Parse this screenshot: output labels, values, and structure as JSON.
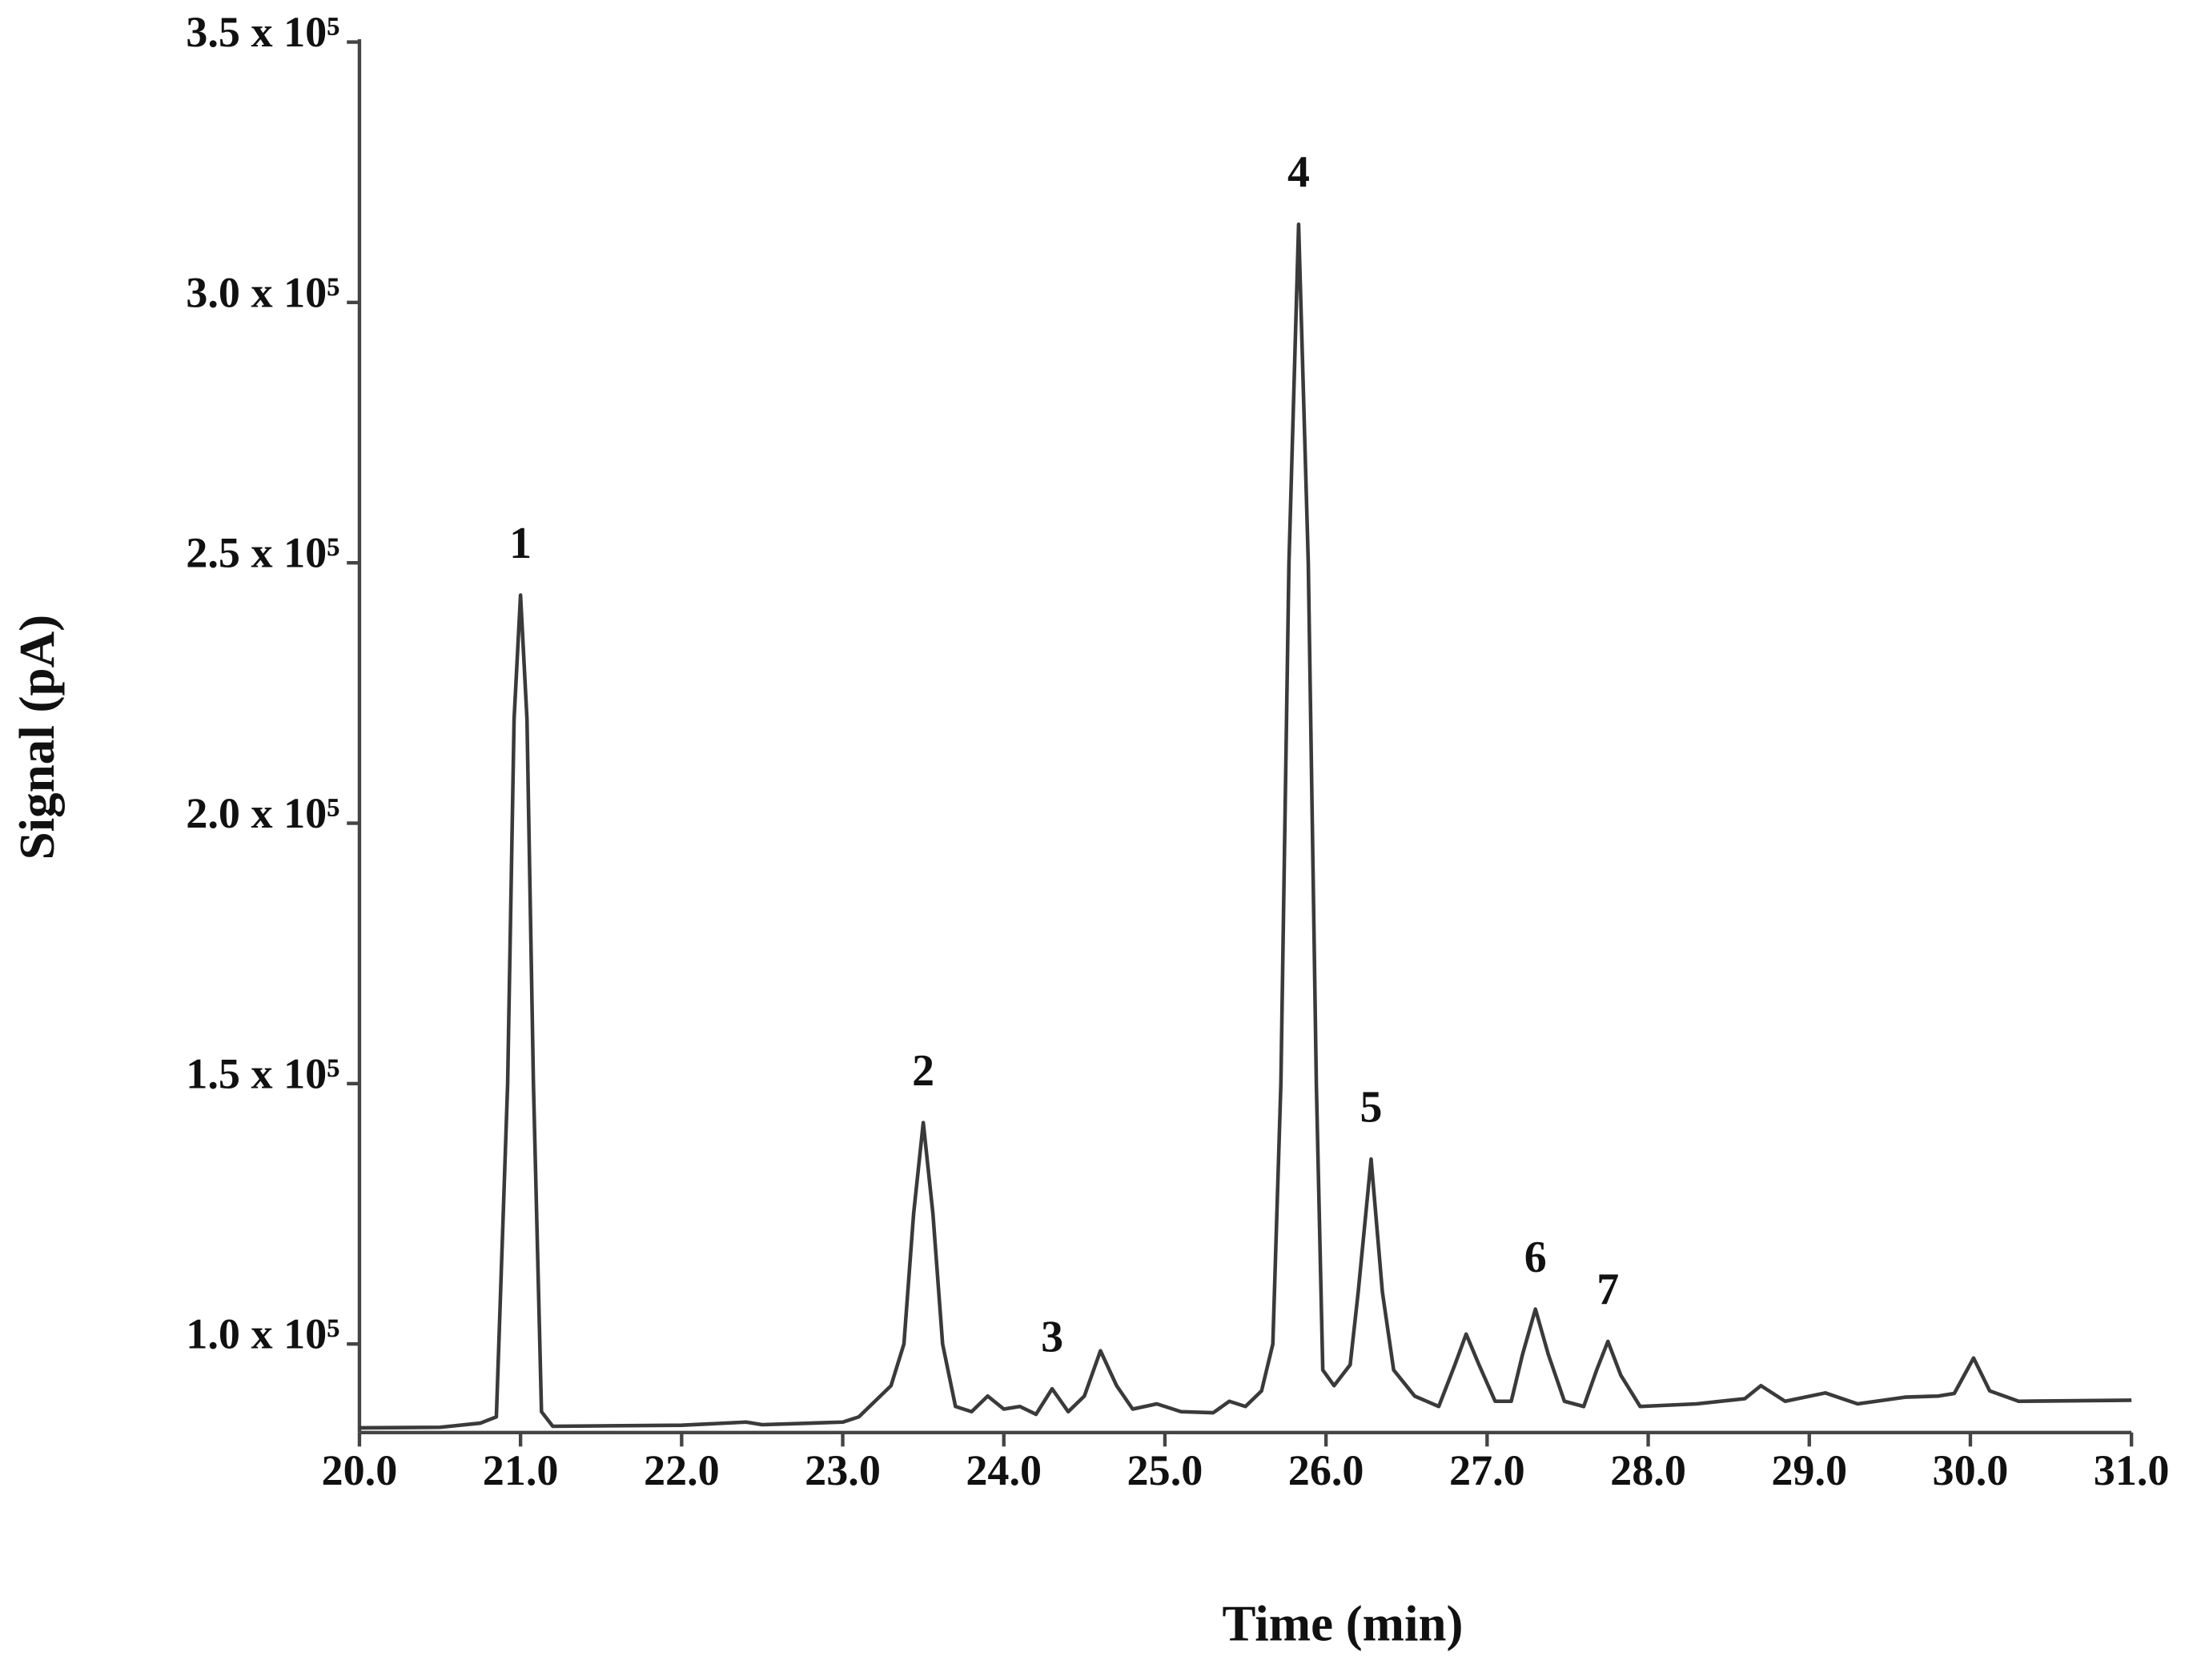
{
  "chart_data": {
    "type": "line",
    "xlabel": "Time (min)",
    "ylabel": "Signal (pA)",
    "xlim": [
      20,
      31
    ],
    "ylim": [
      83000,
      350000
    ],
    "xticks": [
      {
        "value": 20,
        "label": "20.0"
      },
      {
        "value": 21,
        "label": "21.0"
      },
      {
        "value": 22,
        "label": "22.0"
      },
      {
        "value": 23,
        "label": "23.0"
      },
      {
        "value": 24,
        "label": "24.0"
      },
      {
        "value": 25,
        "label": "25.0"
      },
      {
        "value": 26,
        "label": "26.0"
      },
      {
        "value": 27,
        "label": "27.0"
      },
      {
        "value": 28,
        "label": "28.0"
      },
      {
        "value": 29,
        "label": "29.0"
      },
      {
        "value": 30,
        "label": "30.0"
      },
      {
        "value": 31,
        "label": "31.0"
      }
    ],
    "yticks": [
      {
        "value": 100000,
        "label": "1.0 x 10⁵"
      },
      {
        "value": 150000,
        "label": "1.5 x 10⁵"
      },
      {
        "value": 200000,
        "label": "2.0 x 10⁵"
      },
      {
        "value": 250000,
        "label": "2.5 x 10⁵"
      },
      {
        "value": 300000,
        "label": "3.0 x 10⁵"
      },
      {
        "value": 350000,
        "label": "3.5 x 10⁵"
      }
    ],
    "color": "#3a3a3a",
    "x": [
      20.0,
      20.5,
      20.75,
      20.85,
      20.92,
      20.96,
      21.0,
      21.04,
      21.08,
      21.13,
      21.2,
      22.0,
      22.4,
      22.5,
      23.0,
      23.1,
      23.3,
      23.38,
      23.44,
      23.5,
      23.56,
      23.62,
      23.7,
      23.8,
      23.9,
      24.0,
      24.1,
      24.2,
      24.3,
      24.4,
      24.5,
      24.6,
      24.7,
      24.8,
      24.95,
      25.1,
      25.3,
      25.4,
      25.5,
      25.6,
      25.67,
      25.72,
      25.77,
      25.83,
      25.89,
      25.94,
      25.98,
      26.05,
      26.15,
      26.2,
      26.28,
      26.35,
      26.42,
      26.55,
      26.7,
      26.8,
      26.87,
      26.95,
      27.05,
      27.15,
      27.22,
      27.3,
      27.38,
      27.48,
      27.6,
      27.68,
      27.75,
      27.83,
      27.95,
      28.3,
      28.6,
      28.7,
      28.85,
      29.1,
      29.3,
      29.6,
      29.8,
      29.9,
      30.02,
      30.12,
      30.3,
      31.0
    ],
    "values": [
      83900,
      84000,
      84800,
      86000,
      150000,
      220000,
      243800,
      220000,
      150000,
      87000,
      84200,
      84400,
      85000,
      84500,
      85000,
      86000,
      92000,
      100000,
      125000,
      142500,
      125000,
      100000,
      88000,
      87000,
      90000,
      87500,
      88000,
      86500,
      91400,
      87000,
      90000,
      98700,
      92000,
      87500,
      88500,
      87000,
      86800,
      89000,
      88000,
      91000,
      100000,
      150000,
      250000,
      315000,
      250000,
      150000,
      95000,
      92000,
      96000,
      110000,
      135500,
      110000,
      95000,
      90000,
      88000,
      96000,
      101900,
      96000,
      89000,
      89000,
      98000,
      106700,
      98000,
      89000,
      88000,
      95000,
      100500,
      94000,
      88000,
      88500,
      89500,
      92000,
      89000,
      90600,
      88500,
      89800,
      90000,
      90500,
      97300,
      91000,
      89000,
      89200
    ],
    "annotations": [
      {
        "text": "1",
        "x": 21.0
      },
      {
        "text": "2",
        "x": 23.5
      },
      {
        "text": "3",
        "x": 24.3
      },
      {
        "text": "4",
        "x": 25.83
      },
      {
        "text": "5",
        "x": 26.28
      },
      {
        "text": "6",
        "x": 27.3
      },
      {
        "text": "7",
        "x": 27.75
      }
    ]
  }
}
